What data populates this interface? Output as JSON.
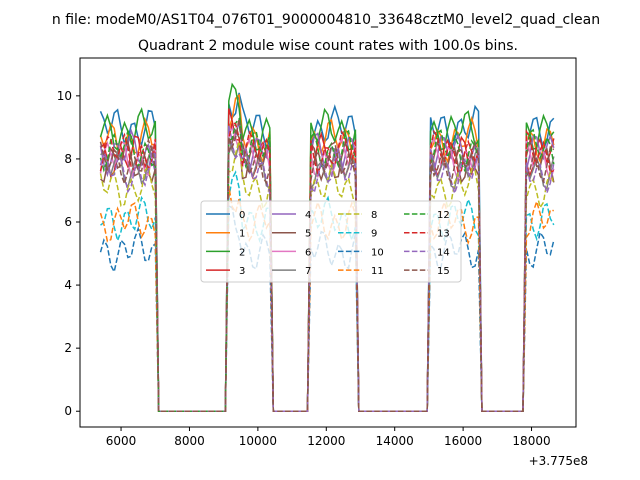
{
  "chart_data": {
    "type": "line",
    "suptitle": "n file: modeM0/AS1T04_076T01_9000004810_33648cztM0_level2_quad_clean",
    "title": "Quadrant 2 module wise count rates with 100.0s bins.",
    "xlabel": "",
    "ylabel": "",
    "x_offset_label": "+3.775e8",
    "xlim": [
      4800,
      19300
    ],
    "ylim": [
      -0.5,
      11.2
    ],
    "x_ticks": [
      6000,
      8000,
      10000,
      12000,
      14000,
      16000,
      18000
    ],
    "x_tick_labels": [
      "6000",
      "8000",
      "10000",
      "12000",
      "14000",
      "16000",
      "18000"
    ],
    "y_ticks": [
      0,
      2,
      4,
      6,
      8,
      10
    ],
    "y_tick_labels": [
      "0",
      "2",
      "4",
      "6",
      "8",
      "10"
    ],
    "grid": false,
    "legend_location": "center",
    "legend_columns": 4,
    "on_segments": [
      [
        5400,
        7000
      ],
      [
        9150,
        10350
      ],
      [
        11550,
        12850
      ],
      [
        15050,
        16450
      ],
      [
        17850,
        18650
      ]
    ],
    "off_level": 0,
    "series": [
      {
        "name": "0",
        "level": 9.0,
        "color": "#1f77b4",
        "dash": "solid"
      },
      {
        "name": "1",
        "level": 8.6,
        "color": "#ff7f0e",
        "dash": "solid"
      },
      {
        "name": "2",
        "level": 8.9,
        "color": "#2ca02c",
        "dash": "solid"
      },
      {
        "name": "3",
        "level": 8.1,
        "color": "#d62728",
        "dash": "solid"
      },
      {
        "name": "4",
        "level": 8.2,
        "color": "#9467bd",
        "dash": "solid"
      },
      {
        "name": "5",
        "level": 7.9,
        "color": "#8c564b",
        "dash": "solid"
      },
      {
        "name": "6",
        "level": 8.0,
        "color": "#e377c2",
        "dash": "solid"
      },
      {
        "name": "7",
        "level": 7.7,
        "color": "#7f7f7f",
        "dash": "solid"
      },
      {
        "name": "8",
        "level": 7.1,
        "color": "#bcbd22",
        "dash": "dashed"
      },
      {
        "name": "9",
        "level": 6.1,
        "color": "#17becf",
        "dash": "dashed"
      },
      {
        "name": "10",
        "level": 5.1,
        "color": "#1f77b4",
        "dash": "dashed"
      },
      {
        "name": "11",
        "level": 6.0,
        "color": "#ff7f0e",
        "dash": "dashed"
      },
      {
        "name": "12",
        "level": 8.3,
        "color": "#2ca02c",
        "dash": "dashed"
      },
      {
        "name": "13",
        "level": 8.2,
        "color": "#d62728",
        "dash": "dashed"
      },
      {
        "name": "14",
        "level": 7.6,
        "color": "#9467bd",
        "dash": "dashed"
      },
      {
        "name": "15",
        "level": 7.9,
        "color": "#8c564b",
        "dash": "dashed"
      }
    ]
  }
}
